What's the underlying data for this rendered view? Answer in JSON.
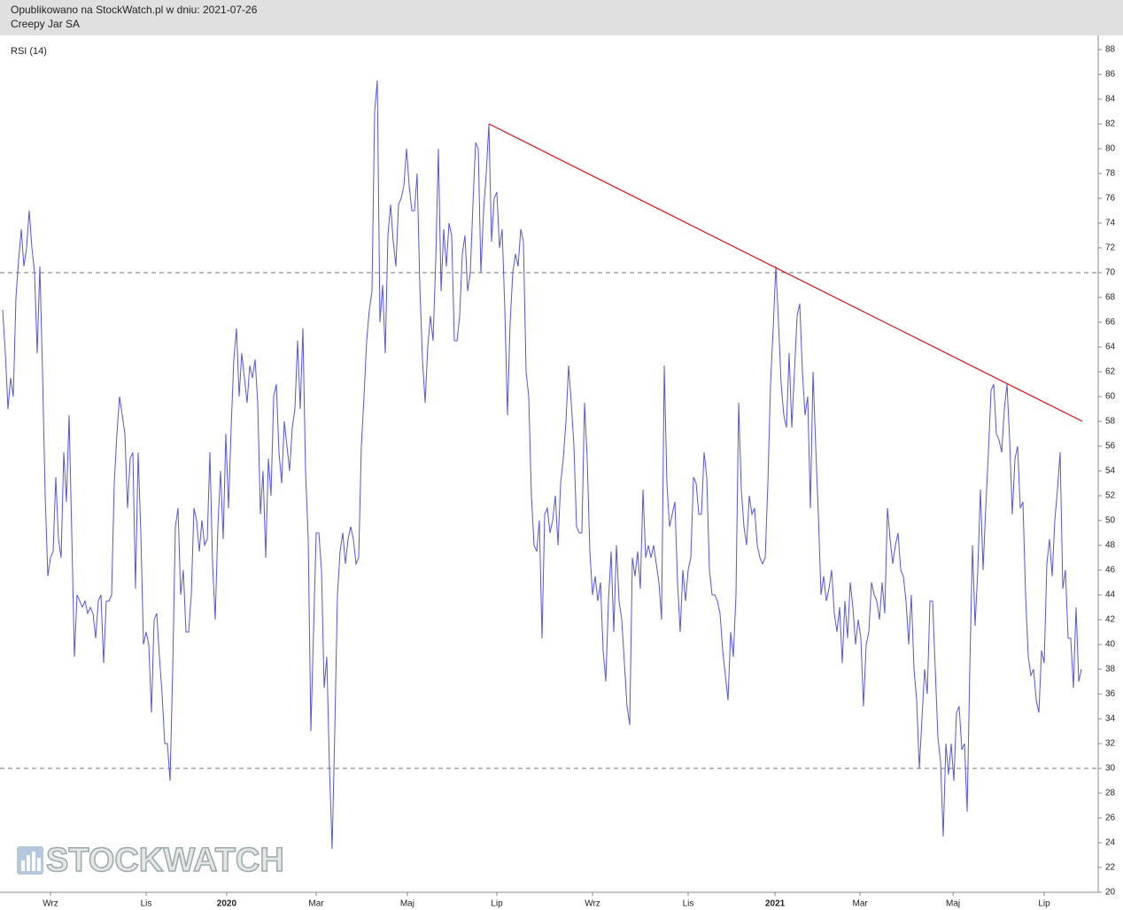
{
  "header": {
    "line1": "Opublikowano na StockWatch.pl w dniu: 2021-07-26",
    "line2": "Creepy Jar SA"
  },
  "chart_data": {
    "type": "line",
    "title": "RSI (14)",
    "watermark": "STOCKWATCH",
    "series": [
      {
        "name": "RSI (14)",
        "color": "#5555dd",
        "values": [
          67,
          63.5,
          59,
          61.5,
          60,
          68,
          71,
          73.5,
          70.5,
          72,
          75,
          72,
          70,
          63.5,
          70.5,
          62,
          52,
          45.5,
          47,
          47.5,
          53.5,
          48.5,
          47,
          55.5,
          51.5,
          58.5,
          49,
          39,
          44,
          43.5,
          43,
          43.5,
          42.5,
          43,
          42.5,
          40.5,
          43.5,
          44,
          38.5,
          43.5,
          43.5,
          44,
          53,
          57,
          60,
          58.5,
          57,
          51,
          55,
          55.5,
          44.5,
          55.5,
          49,
          40,
          41,
          40,
          34.5,
          42,
          42.5,
          39,
          36,
          32,
          32,
          29,
          38,
          49.5,
          51,
          44,
          46,
          41,
          41,
          44,
          51,
          50,
          47.5,
          50,
          48,
          48.5,
          55.5,
          46.5,
          42,
          49.5,
          54,
          48.5,
          57,
          51,
          57.5,
          63,
          65.5,
          60,
          63.5,
          61.5,
          59.5,
          62.5,
          61.5,
          63,
          59.5,
          50.5,
          54,
          47,
          55,
          52,
          60,
          61,
          55.5,
          53,
          58,
          56,
          54,
          57.5,
          59,
          64.5,
          59,
          65.5,
          54,
          48.5,
          33,
          41,
          49,
          49,
          46,
          36.5,
          39,
          30,
          23.5,
          33,
          44,
          47.5,
          49,
          46.5,
          48.5,
          49.5,
          48.5,
          46.5,
          47,
          56,
          60,
          64.5,
          67,
          68.5,
          83,
          85.5,
          66,
          69,
          63.5,
          73,
          75.5,
          72.5,
          70.5,
          75.5,
          76,
          77,
          80,
          77,
          75,
          75,
          78,
          69,
          63,
          59.5,
          64,
          66.5,
          64.5,
          71,
          80,
          68.5,
          73.5,
          70.5,
          74,
          73,
          64.5,
          64.5,
          66.5,
          71.5,
          73,
          68.5,
          70,
          75.5,
          80.5,
          80,
          70,
          75,
          78,
          82,
          72.5,
          76,
          76.5,
          72,
          73.5,
          67,
          58.5,
          66,
          70,
          71.5,
          70.5,
          73.5,
          72.5,
          62,
          60,
          52,
          48,
          47.5,
          50,
          40.5,
          50.5,
          51,
          49,
          50,
          52,
          48,
          53,
          55,
          58,
          62.5,
          59.5,
          56,
          49.5,
          49,
          49,
          59.5,
          55,
          47.5,
          44,
          45.5,
          43.5,
          45,
          39.5,
          37,
          43.5,
          47.5,
          41,
          48,
          43.5,
          42,
          38.5,
          35,
          33.5,
          47,
          45.5,
          47.5,
          44.5,
          52.5,
          47,
          48,
          47,
          48,
          46.5,
          45,
          42,
          62.5,
          53,
          49.5,
          50.5,
          51.5,
          45,
          41,
          46,
          43.5,
          46,
          47,
          53.5,
          53,
          50.5,
          50.5,
          55.5,
          53.5,
          46,
          44,
          44,
          43.5,
          42.5,
          39.5,
          37.5,
          35.5,
          41,
          39,
          44,
          59.5,
          52.5,
          49.5,
          48,
          52,
          50.5,
          51,
          48,
          47,
          46.5,
          47,
          53,
          61,
          65.5,
          70.5,
          66,
          61,
          58.5,
          57.5,
          63.5,
          57.5,
          62,
          66.5,
          67.5,
          62,
          58.5,
          60,
          51,
          62,
          56,
          50.5,
          44,
          45.5,
          43.5,
          44.5,
          46,
          42.5,
          41,
          43,
          38.5,
          43.5,
          40.5,
          45,
          43,
          40,
          42,
          40.5,
          35,
          40,
          41,
          45,
          44,
          43.5,
          42,
          45,
          42.5,
          51,
          48.5,
          46.5,
          48,
          49,
          46,
          45.5,
          43.5,
          40,
          44,
          38,
          35.5,
          30,
          34,
          38,
          36,
          43.5,
          43.5,
          38,
          32.5,
          30.5,
          24.5,
          32,
          29.5,
          32,
          29,
          34.5,
          35,
          31.5,
          32,
          26.5,
          38,
          48,
          41.5,
          46,
          52.5,
          46,
          51,
          55.5,
          60.5,
          61,
          57,
          56.5,
          55.5,
          59,
          61,
          56.5,
          50.5,
          55,
          56,
          51,
          51.5,
          44,
          39,
          37.5,
          38,
          35.5,
          34.5,
          39.5,
          38.5,
          46.5,
          48.5,
          45.5,
          50,
          52.5,
          55.5,
          44.5,
          46,
          40.5,
          40.5,
          36.5,
          43,
          37,
          38
        ]
      }
    ],
    "levels": [
      30,
      70
    ],
    "trendline": {
      "x": [
        183,
        406.33
      ],
      "y": [
        82,
        58
      ],
      "color": "#dd2222"
    },
    "xlim": [
      -1,
      412.33
    ],
    "xticks": [
      {
        "value": 18,
        "label": "Wrz"
      },
      {
        "value": 54,
        "label": "Lis"
      },
      {
        "value": 84.3,
        "label": "2020"
      },
      {
        "value": 118,
        "label": "Mar"
      },
      {
        "value": 152.3,
        "label": "Maj"
      },
      {
        "value": 186,
        "label": "Lip"
      },
      {
        "value": 222,
        "label": "Wrz"
      },
      {
        "value": 258,
        "label": "Lis"
      },
      {
        "value": 290.7,
        "label": "2021"
      },
      {
        "value": 322.7,
        "label": "Mar"
      },
      {
        "value": 357.7,
        "label": "Maj"
      },
      {
        "value": 392,
        "label": "Lip"
      }
    ],
    "ylim": [
      20,
      89.14
    ],
    "yticks": [
      20,
      22,
      24,
      26,
      28,
      30,
      32,
      34,
      36,
      38,
      40,
      42,
      44,
      46,
      48,
      50,
      52,
      54,
      56,
      58,
      60,
      62,
      64,
      66,
      68,
      70,
      72,
      74,
      76,
      78,
      80,
      82,
      84,
      86,
      88
    ]
  }
}
